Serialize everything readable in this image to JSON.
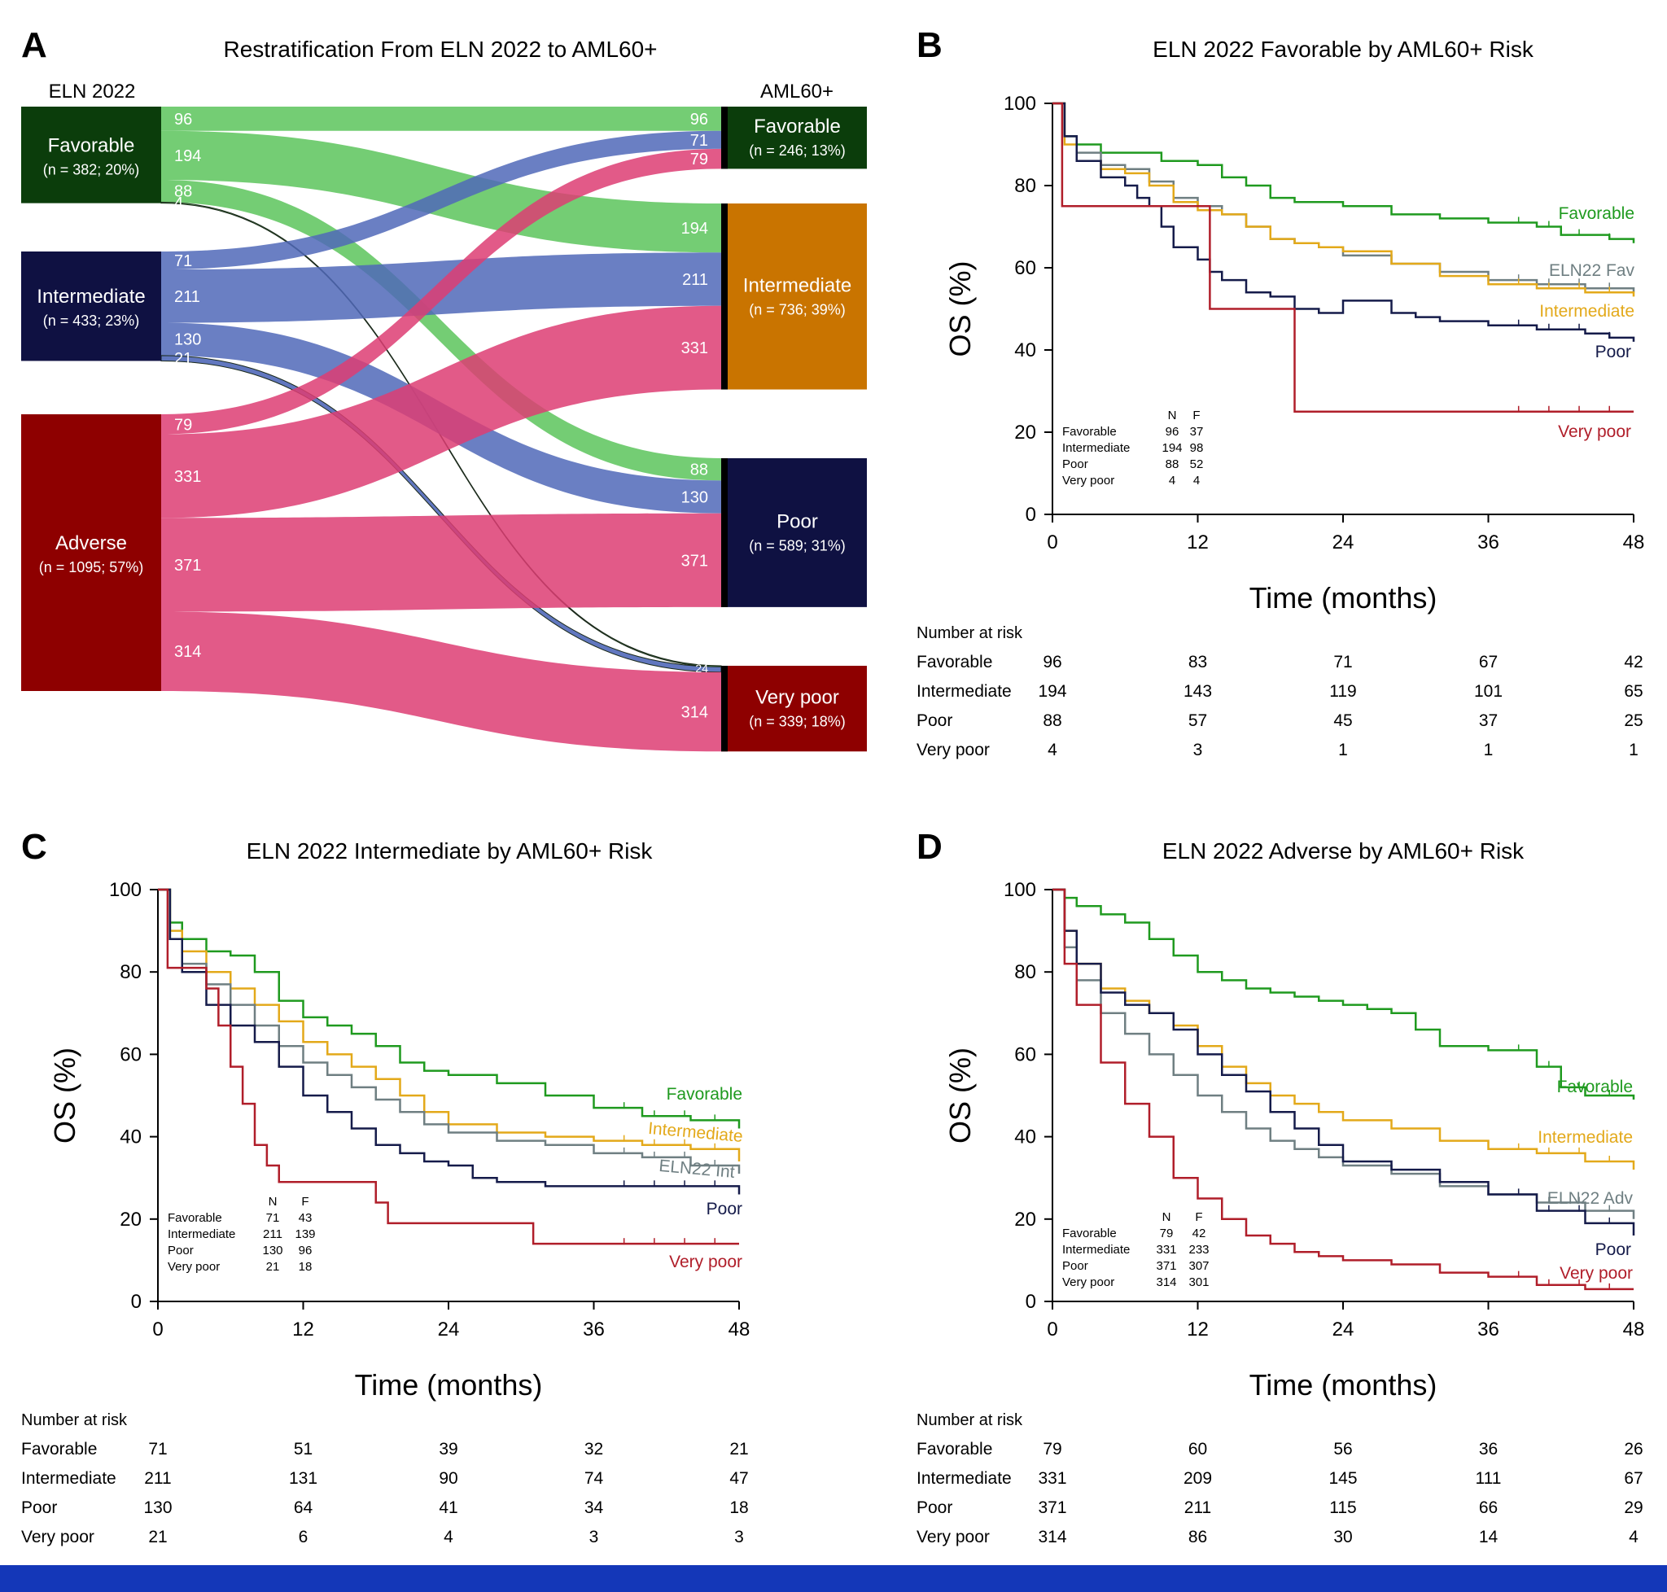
{
  "colors": {
    "favorable": "#1f9a1f",
    "intermediate": "#e3a91a",
    "poor": "#151b4a",
    "very_poor": "#b01e2a",
    "elnref": "#6f7f82",
    "box_favorable": "#0b3d0b",
    "box_intermediate": "#0f1142",
    "box_adverse": "#8e0000",
    "box_aml_int": "#c97400",
    "flow_green": "#5cc45c",
    "flow_blue": "#5068b8",
    "flow_pink": "#dd3d73",
    "footer": "#1437b8"
  },
  "panelA": {
    "letter": "A",
    "title": "Restratification From ELN 2022 to AML60+",
    "left_header": "ELN 2022",
    "right_header": "AML60+",
    "left_boxes": [
      {
        "name": "Favorable",
        "sub": "(n = 382; 20%)"
      },
      {
        "name": "Intermediate",
        "sub": "(n = 433; 23%)"
      },
      {
        "name": "Adverse",
        "sub": "(n = 1095; 57%)"
      }
    ],
    "right_boxes": [
      {
        "name": "Favorable",
        "sub": "(n = 246; 13%)"
      },
      {
        "name": "Intermediate",
        "sub": "(n = 736; 39%)"
      },
      {
        "name": "Poor",
        "sub": "(n = 589; 31%)"
      },
      {
        "name": "Very poor",
        "sub": "(n = 339; 18%)"
      }
    ],
    "flows": [
      {
        "from": "Favorable",
        "to": "Favorable",
        "value": 96
      },
      {
        "from": "Favorable",
        "to": "Intermediate",
        "value": 194
      },
      {
        "from": "Favorable",
        "to": "Poor",
        "value": 88
      },
      {
        "from": "Favorable",
        "to": "Very poor",
        "value": 4
      },
      {
        "from": "Intermediate",
        "to": "Favorable",
        "value": 71
      },
      {
        "from": "Intermediate",
        "to": "Intermediate",
        "value": 211
      },
      {
        "from": "Intermediate",
        "to": "Poor",
        "value": 130
      },
      {
        "from": "Intermediate",
        "to": "Very poor",
        "value": 21
      },
      {
        "from": "Adverse",
        "to": "Favorable",
        "value": 79
      },
      {
        "from": "Adverse",
        "to": "Intermediate",
        "value": 331
      },
      {
        "from": "Adverse",
        "to": "Poor",
        "value": 371
      },
      {
        "from": "Adverse",
        "to": "Very poor",
        "value": 314
      }
    ],
    "small_labels": {
      "left_fav_vp": "4",
      "left_int_vp": "21",
      "right_vp_small": "24"
    }
  },
  "chart_data": [
    {
      "type": "line",
      "letter": "B",
      "title": "ELN 2022 Favorable by AML60+ Risk",
      "xlabel": "Time (months)",
      "ylabel": "OS (%)",
      "xlim": [
        0,
        48
      ],
      "ylim": [
        0,
        100
      ],
      "xticks": [
        "0",
        "12",
        "24",
        "36",
        "48"
      ],
      "yticks": [
        "0",
        "20",
        "40",
        "60",
        "80",
        "100"
      ],
      "series": [
        {
          "name": "Favorable",
          "label": "Favorable",
          "color": "#1f9a1f",
          "x": [
            0,
            1,
            2,
            4,
            6,
            9,
            12,
            14,
            16,
            18,
            20,
            24,
            28,
            32,
            36,
            40,
            42,
            46,
            48
          ],
          "y": [
            100,
            92,
            90,
            88,
            88,
            86,
            85,
            82,
            80,
            77,
            76,
            75,
            73,
            72,
            71,
            70,
            68,
            67,
            66
          ]
        },
        {
          "name": "ELN22 Fav",
          "label": "ELN22 Fav",
          "color": "#6f7f82",
          "x": [
            0,
            1,
            2,
            4,
            6,
            8,
            10,
            12,
            14,
            16,
            18,
            20,
            22,
            24,
            28,
            32,
            36,
            40,
            44,
            48
          ],
          "y": [
            100,
            92,
            88,
            85,
            84,
            81,
            77,
            75,
            73,
            70,
            67,
            66,
            65,
            63,
            61,
            59,
            57,
            56,
            55,
            54
          ]
        },
        {
          "name": "Intermediate",
          "label": "Intermediate",
          "color": "#e3a91a",
          "x": [
            0,
            1,
            2,
            4,
            6,
            8,
            10,
            12,
            14,
            16,
            18,
            20,
            22,
            24,
            28,
            32,
            36,
            40,
            44,
            48
          ],
          "y": [
            100,
            90,
            86,
            84,
            83,
            80,
            76,
            74,
            73,
            70,
            67,
            66,
            65,
            64,
            61,
            58,
            56,
            55,
            54,
            53
          ]
        },
        {
          "name": "Poor",
          "label": "Poor",
          "color": "#151b4a",
          "x": [
            0,
            1,
            2,
            4,
            6,
            7,
            8,
            9,
            10,
            12,
            13,
            14,
            16,
            18,
            20,
            22,
            24,
            28,
            30,
            32,
            36,
            40,
            44,
            46,
            48
          ],
          "y": [
            100,
            92,
            86,
            82,
            80,
            77,
            75,
            70,
            65,
            62,
            59,
            57,
            54,
            53,
            50,
            49,
            52,
            49,
            48,
            47,
            46,
            45,
            44,
            43,
            42
          ]
        },
        {
          "name": "Very poor",
          "label": "Very poor",
          "color": "#b01e2a",
          "x": [
            0,
            0.8,
            13,
            20,
            48
          ],
          "y": [
            100,
            75,
            50,
            25,
            25
          ]
        }
      ],
      "inset_table": {
        "headers": [
          "N",
          "F"
        ],
        "rows": [
          [
            "Favorable",
            "96",
            "37"
          ],
          [
            "Intermediate",
            "194",
            "98"
          ],
          [
            "Poor",
            "88",
            "52"
          ],
          [
            "Very poor",
            "4",
            "4"
          ]
        ]
      },
      "risk_table": {
        "title": "Number at risk",
        "rows": [
          {
            "group": "Favorable",
            "values": [
              "96",
              "83",
              "71",
              "67",
              "42"
            ]
          },
          {
            "group": "Intermediate",
            "values": [
              "194",
              "143",
              "119",
              "101",
              "65"
            ]
          },
          {
            "group": "Poor",
            "values": [
              "88",
              "57",
              "45",
              "37",
              "25"
            ]
          },
          {
            "group": "Very poor",
            "values": [
              "4",
              "3",
              "1",
              "1",
              "1"
            ]
          }
        ]
      }
    },
    {
      "type": "line",
      "letter": "C",
      "title": "ELN 2022 Intermediate by AML60+ Risk",
      "xlabel": "Time (months)",
      "ylabel": "OS (%)",
      "xlim": [
        0,
        48
      ],
      "ylim": [
        0,
        100
      ],
      "xticks": [
        "0",
        "12",
        "24",
        "36",
        "48"
      ],
      "yticks": [
        "0",
        "20",
        "40",
        "60",
        "80",
        "100"
      ],
      "series": [
        {
          "name": "Favorable",
          "label": "Favorable",
          "color": "#1f9a1f",
          "x": [
            0,
            1,
            2,
            4,
            6,
            8,
            10,
            12,
            14,
            16,
            18,
            20,
            22,
            24,
            28,
            32,
            36,
            40,
            44,
            48
          ],
          "y": [
            100,
            92,
            88,
            85,
            84,
            80,
            73,
            69,
            67,
            65,
            62,
            58,
            56,
            55,
            53,
            50,
            47,
            45,
            44,
            42
          ]
        },
        {
          "name": "Intermediate",
          "label": "Intermediate",
          "color": "#e3a91a",
          "x": [
            0,
            1,
            2,
            4,
            6,
            8,
            10,
            12,
            14,
            16,
            18,
            20,
            22,
            24,
            28,
            32,
            36,
            40,
            44,
            48
          ],
          "y": [
            100,
            90,
            85,
            80,
            76,
            72,
            68,
            63,
            60,
            57,
            54,
            50,
            46,
            43,
            41,
            40,
            39,
            38,
            37,
            34
          ]
        },
        {
          "name": "ELN22 Int",
          "label": "ELN22 Int",
          "color": "#6f7f82",
          "x": [
            0,
            1,
            2,
            4,
            6,
            8,
            10,
            12,
            14,
            16,
            18,
            20,
            22,
            24,
            28,
            32,
            36,
            40,
            44,
            48
          ],
          "y": [
            100,
            88,
            82,
            77,
            72,
            67,
            62,
            58,
            55,
            52,
            49,
            46,
            43,
            41,
            39,
            38,
            36,
            35,
            33,
            31
          ]
        },
        {
          "name": "Poor",
          "label": "Poor",
          "color": "#151b4a",
          "x": [
            0,
            1,
            2,
            4,
            6,
            8,
            10,
            12,
            14,
            16,
            18,
            20,
            22,
            24,
            26,
            28,
            30,
            32,
            36,
            40,
            44,
            48
          ],
          "y": [
            100,
            88,
            80,
            72,
            67,
            63,
            57,
            50,
            46,
            42,
            38,
            36,
            34,
            33,
            30,
            29,
            29,
            28,
            28,
            28,
            28,
            26
          ]
        },
        {
          "name": "Very poor",
          "label": "Very poor",
          "color": "#b01e2a",
          "x": [
            0,
            0.8,
            3,
            4,
            5,
            6,
            7,
            8,
            9,
            10,
            18,
            19,
            31,
            48
          ],
          "y": [
            100,
            81,
            81,
            76,
            67,
            57,
            48,
            38,
            33,
            29,
            24,
            19,
            14,
            14
          ]
        }
      ],
      "inset_table": {
        "headers": [
          "N",
          "F"
        ],
        "rows": [
          [
            "Favorable",
            "71",
            "43"
          ],
          [
            "Intermediate",
            "211",
            "139"
          ],
          [
            "Poor",
            "130",
            "96"
          ],
          [
            "Very poor",
            "21",
            "18"
          ]
        ]
      },
      "risk_table": {
        "title": "Number at risk",
        "rows": [
          {
            "group": "Favorable",
            "values": [
              "71",
              "51",
              "39",
              "32",
              "21"
            ]
          },
          {
            "group": "Intermediate",
            "values": [
              "211",
              "131",
              "90",
              "74",
              "47"
            ]
          },
          {
            "group": "Poor",
            "values": [
              "130",
              "64",
              "41",
              "34",
              "18"
            ]
          },
          {
            "group": "Very poor",
            "values": [
              "21",
              "6",
              "4",
              "3",
              "3"
            ]
          }
        ]
      }
    },
    {
      "type": "line",
      "letter": "D",
      "title": "ELN 2022 Adverse by AML60+ Risk",
      "xlabel": "Time (months)",
      "ylabel": "OS (%)",
      "xlim": [
        0,
        48
      ],
      "ylim": [
        0,
        100
      ],
      "xticks": [
        "0",
        "12",
        "24",
        "36",
        "48"
      ],
      "yticks": [
        "0",
        "20",
        "40",
        "60",
        "80",
        "100"
      ],
      "series": [
        {
          "name": "Favorable",
          "label": "Favorable",
          "color": "#1f9a1f",
          "x": [
            0,
            1,
            2,
            4,
            6,
            8,
            10,
            12,
            14,
            16,
            18,
            20,
            22,
            24,
            26,
            28,
            30,
            32,
            36,
            40,
            42,
            44,
            48
          ],
          "y": [
            100,
            98,
            96,
            94,
            92,
            88,
            84,
            80,
            78,
            76,
            75,
            74,
            73,
            72,
            71,
            70,
            66,
            62,
            61,
            57,
            52,
            50,
            49
          ]
        },
        {
          "name": "Intermediate",
          "label": "Intermediate",
          "color": "#e3a91a",
          "x": [
            0,
            1,
            2,
            4,
            6,
            8,
            10,
            12,
            14,
            16,
            18,
            20,
            22,
            24,
            28,
            32,
            36,
            40,
            44,
            48
          ],
          "y": [
            100,
            90,
            82,
            76,
            73,
            70,
            67,
            62,
            57,
            53,
            50,
            48,
            46,
            44,
            42,
            39,
            37,
            36,
            34,
            32
          ]
        },
        {
          "name": "ELN22 Adv",
          "label": "ELN22 Adv",
          "color": "#6f7f82",
          "x": [
            0,
            1,
            2,
            4,
            6,
            8,
            10,
            12,
            14,
            16,
            18,
            20,
            22,
            24,
            28,
            32,
            36,
            40,
            44,
            48
          ],
          "y": [
            100,
            86,
            78,
            70,
            65,
            60,
            55,
            50,
            46,
            42,
            39,
            37,
            35,
            33,
            31,
            28,
            26,
            24,
            22,
            20
          ]
        },
        {
          "name": "Poor",
          "label": "Poor",
          "color": "#151b4a",
          "x": [
            0,
            1,
            2,
            4,
            6,
            8,
            10,
            12,
            14,
            16,
            18,
            20,
            22,
            24,
            28,
            32,
            36,
            40,
            44,
            48
          ],
          "y": [
            100,
            90,
            82,
            75,
            72,
            70,
            66,
            60,
            55,
            51,
            46,
            42,
            38,
            34,
            32,
            29,
            26,
            22,
            19,
            16
          ]
        },
        {
          "name": "Very poor",
          "label": "Very poor",
          "color": "#b01e2a",
          "x": [
            0,
            1,
            2,
            4,
            6,
            8,
            10,
            12,
            14,
            16,
            18,
            20,
            22,
            24,
            28,
            32,
            36,
            40,
            44,
            48
          ],
          "y": [
            100,
            82,
            72,
            58,
            48,
            40,
            30,
            25,
            20,
            16,
            14,
            12,
            11,
            10,
            9,
            7,
            6,
            4,
            3,
            3
          ]
        }
      ],
      "inset_table": {
        "headers": [
          "N",
          "F"
        ],
        "rows": [
          [
            "Favorable",
            "79",
            "42"
          ],
          [
            "Intermediate",
            "331",
            "233"
          ],
          [
            "Poor",
            "371",
            "307"
          ],
          [
            "Very poor",
            "314",
            "301"
          ]
        ]
      },
      "risk_table": {
        "title": "Number at risk",
        "rows": [
          {
            "group": "Favorable",
            "values": [
              "79",
              "60",
              "56",
              "36",
              "26"
            ]
          },
          {
            "group": "Intermediate",
            "values": [
              "331",
              "209",
              "145",
              "111",
              "67"
            ]
          },
          {
            "group": "Poor",
            "values": [
              "371",
              "211",
              "115",
              "66",
              "29"
            ]
          },
          {
            "group": "Very poor",
            "values": [
              "314",
              "86",
              "30",
              "14",
              "4"
            ]
          }
        ]
      }
    }
  ]
}
